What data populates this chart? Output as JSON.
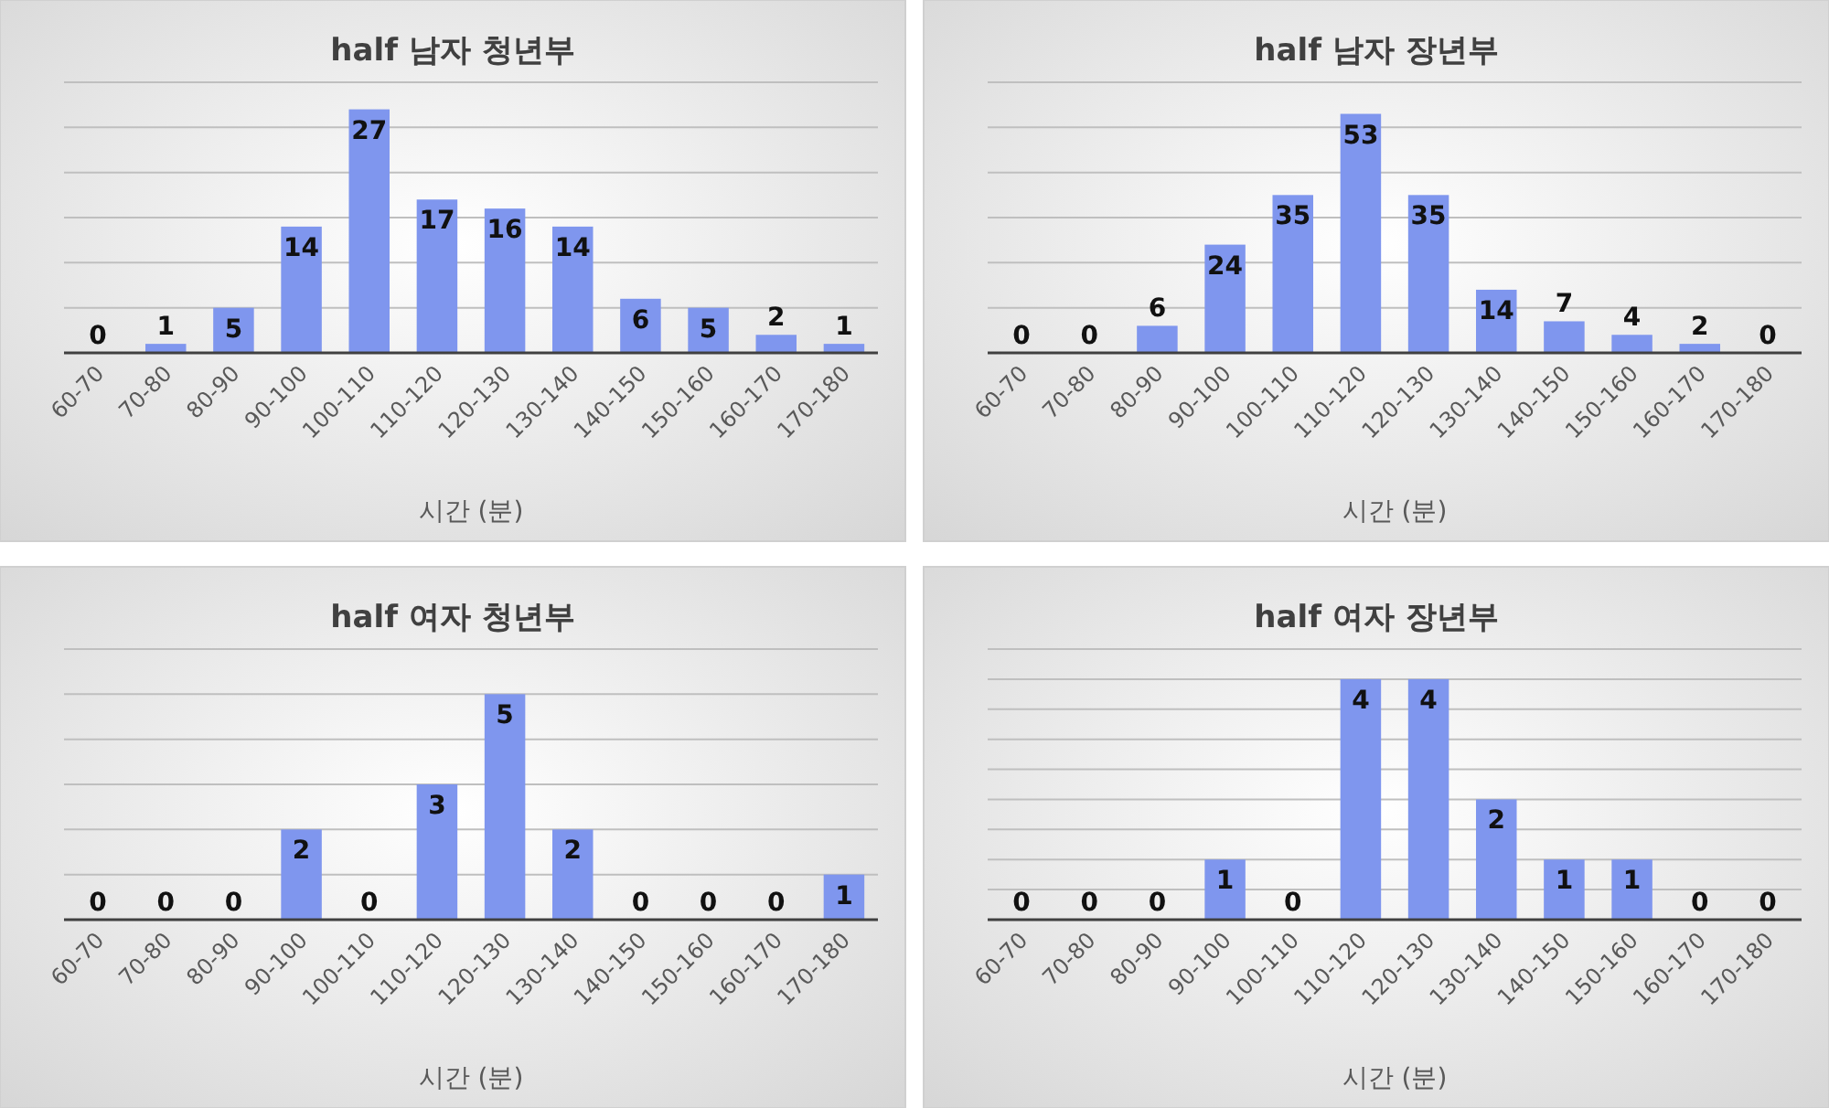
{
  "chart_data": [
    {
      "type": "bar",
      "title": "half 남자 청년부",
      "xlabel": "시간 (분)",
      "categories": [
        "60-70",
        "70-80",
        "80-90",
        "90-100",
        "100-110",
        "110-120",
        "120-130",
        "130-140",
        "140-150",
        "150-160",
        "160-170",
        "170-180"
      ],
      "values": [
        0,
        1,
        5,
        14,
        27,
        17,
        16,
        14,
        6,
        5,
        2,
        1
      ],
      "color": "#7f96ee",
      "data_labels": true,
      "grid": "y",
      "ylim": [
        0,
        30
      ],
      "yticks": [
        {
          "value": 0,
          "label": null
        },
        {
          "value": 5,
          "label": null
        },
        {
          "value": 10,
          "label": null
        },
        {
          "value": 15,
          "label": null
        },
        {
          "value": 20,
          "label": null
        },
        {
          "value": 25,
          "label": null
        },
        {
          "value": 30,
          "label": null
        }
      ],
      "tick_labels": "x"
    },
    {
      "type": "bar",
      "title": "half 남자 장년부",
      "xlabel": "시간 (분)",
      "categories": [
        "60-70",
        "70-80",
        "80-90",
        "90-100",
        "100-110",
        "110-120",
        "120-130",
        "130-140",
        "140-150",
        "150-160",
        "160-170",
        "170-180"
      ],
      "values": [
        0,
        0,
        6,
        24,
        35,
        53,
        35,
        14,
        7,
        4,
        2,
        0
      ],
      "color": "#7f96ee",
      "data_labels": true,
      "grid": "y",
      "ylim": [
        0,
        60
      ],
      "yticks": [
        {
          "value": 0,
          "label": null
        },
        {
          "value": 10,
          "label": null
        },
        {
          "value": 20,
          "label": null
        },
        {
          "value": 30,
          "label": null
        },
        {
          "value": 40,
          "label": null
        },
        {
          "value": 50,
          "label": null
        },
        {
          "value": 60,
          "label": null
        }
      ],
      "tick_labels": "x"
    },
    {
      "type": "bar",
      "title": "half 여자 청년부",
      "xlabel": "시간 (분)",
      "categories": [
        "60-70",
        "70-80",
        "80-90",
        "90-100",
        "100-110",
        "110-120",
        "120-130",
        "130-140",
        "140-150",
        "150-160",
        "160-170",
        "170-180"
      ],
      "values": [
        0,
        0,
        0,
        2,
        0,
        3,
        5,
        2,
        0,
        0,
        0,
        1
      ],
      "color": "#7f96ee",
      "data_labels": true,
      "grid": "y",
      "ylim": [
        0,
        6
      ],
      "yticks": [
        {
          "value": 0,
          "label": null
        },
        {
          "value": 1,
          "label": null
        },
        {
          "value": 2,
          "label": null
        },
        {
          "value": 3,
          "label": null
        },
        {
          "value": 4,
          "label": null
        },
        {
          "value": 5,
          "label": null
        },
        {
          "value": 6,
          "label": null
        }
      ],
      "tick_labels": "x"
    },
    {
      "type": "bar",
      "title": "half 여자 장년부",
      "xlabel": "시간 (분)",
      "categories": [
        "60-70",
        "70-80",
        "80-90",
        "90-100",
        "100-110",
        "110-120",
        "120-130",
        "130-140",
        "140-150",
        "150-160",
        "160-170",
        "170-180"
      ],
      "values": [
        0,
        0,
        0,
        1,
        0,
        4,
        4,
        2,
        1,
        1,
        0,
        0
      ],
      "color": "#7f96ee",
      "data_labels": true,
      "grid": "y",
      "ylim": [
        0,
        4.5
      ],
      "yticks": [
        {
          "value": 0,
          "label": null
        },
        {
          "value": 0.5,
          "label": null
        },
        {
          "value": 1,
          "label": null
        },
        {
          "value": 1.5,
          "label": null
        },
        {
          "value": 2,
          "label": null
        },
        {
          "value": 2.5,
          "label": null
        },
        {
          "value": 3,
          "label": null
        },
        {
          "value": 3.5,
          "label": null
        },
        {
          "value": 4,
          "label": null
        },
        {
          "value": 4.5,
          "label": null
        }
      ],
      "tick_labels": "x"
    }
  ]
}
